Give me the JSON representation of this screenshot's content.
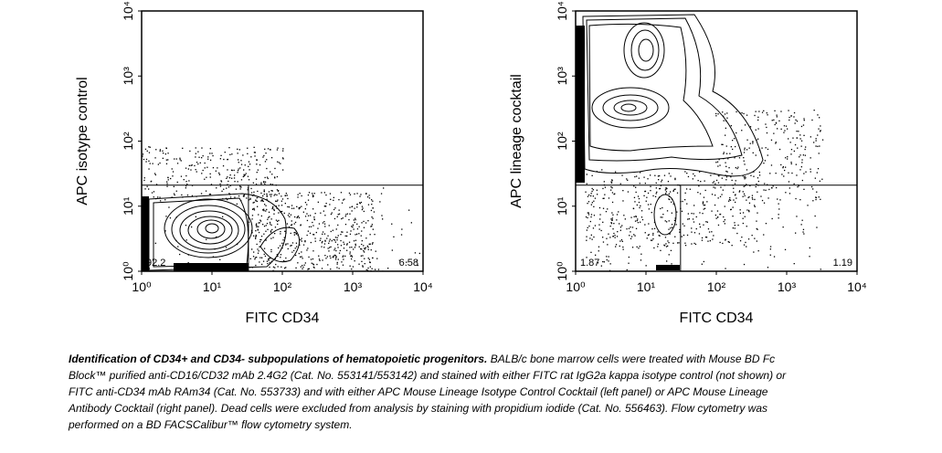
{
  "chart_data": [
    {
      "type": "contour",
      "y_label": "APC isotype control",
      "x_label": "FITC CD34",
      "xlim": [
        1,
        10000
      ],
      "ylim": [
        1,
        10000
      ],
      "log_x": true,
      "log_y": true,
      "xticks": [
        {
          "value": 1,
          "label": "10⁰"
        },
        {
          "value": 10,
          "label": "10¹"
        },
        {
          "value": 100,
          "label": "10²"
        },
        {
          "value": 1000,
          "label": "10³"
        },
        {
          "value": 10000,
          "label": "10⁴"
        }
      ],
      "yticks": [
        {
          "value": 1,
          "label": "10⁰"
        },
        {
          "value": 10,
          "label": "10¹"
        },
        {
          "value": 100,
          "label": "10²"
        },
        {
          "value": 1000,
          "label": "10³"
        },
        {
          "value": 10000,
          "label": "10⁴"
        }
      ],
      "gate": {
        "x": 33,
        "y": 21
      },
      "quadrant_labels": {
        "lower_left": 92.2,
        "lower_right": 6.58
      }
    },
    {
      "type": "contour",
      "y_label": "APC lineage cocktail",
      "x_label": "FITC CD34",
      "xlim": [
        1,
        10000
      ],
      "ylim": [
        1,
        10000
      ],
      "log_x": true,
      "log_y": true,
      "xticks": [
        {
          "value": 1,
          "label": "10⁰"
        },
        {
          "value": 10,
          "label": "10¹"
        },
        {
          "value": 100,
          "label": "10²"
        },
        {
          "value": 1000,
          "label": "10³"
        },
        {
          "value": 10000,
          "label": "10⁴"
        }
      ],
      "yticks": [
        {
          "value": 1,
          "label": "10⁰"
        },
        {
          "value": 10,
          "label": "10¹"
        },
        {
          "value": 100,
          "label": "10²"
        },
        {
          "value": 1000,
          "label": "10³"
        },
        {
          "value": 10000,
          "label": "10⁴"
        }
      ],
      "gate": {
        "x": 31,
        "y": 21
      },
      "quadrant_labels": {
        "lower_left": 1.87,
        "lower_right": 1.19
      }
    }
  ],
  "caption": {
    "title": "Identification of CD34+ and CD34- subpopulations of hematopoietic progenitors.",
    "text": "BALB/c bone marrow cells were treated with Mouse BD Fc Block™ purified anti-CD16/CD32 mAb 2.4G2 (Cat. No. 553141/553142) and stained with either FITC rat IgG2a kappa isotype control (not shown) or FITC anti-CD34 mAb RAm34 (Cat. No. 553733) and with either APC Mouse Lineage Isotype Control Cocktail (left panel) or APC Mouse Lineage Antibody Cocktail (right panel). Dead cells were excluded from analysis by staining with propidium iodide (Cat. No. 556463). Flow cytometry was performed on a BD FACSCalibur™ flow cytometry system."
  }
}
